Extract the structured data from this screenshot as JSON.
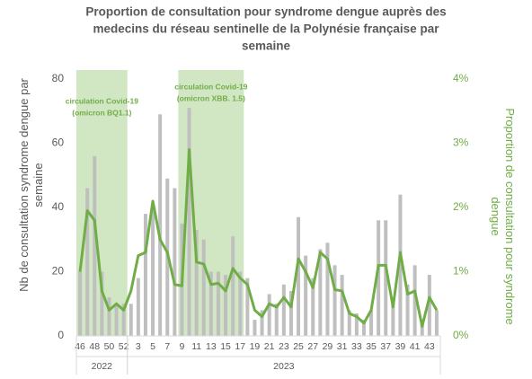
{
  "chart_data": {
    "type": "bar_line",
    "title": [
      "Proportion de consultation pour syndrome dengue auprès des",
      "medecins du réseau sentinelle de la Polynésie française par",
      "semaine"
    ],
    "ylabel": "Nb de consultation syndrome dengue par semaine",
    "y2label": "Proportion de consultation pour syndrome dengue",
    "categories": [
      "46",
      null,
      "48",
      null,
      "50",
      null,
      "52",
      null,
      "3",
      null,
      "5",
      null,
      "7",
      null,
      "9",
      null,
      "11",
      null,
      "13",
      null,
      "15",
      null,
      "17",
      null,
      "19",
      null,
      "21",
      null,
      "23",
      null,
      "25",
      null,
      "27",
      null,
      "29",
      null,
      "31",
      null,
      "33",
      null,
      "35",
      null,
      "37",
      null,
      "39",
      null,
      "41",
      null,
      "43",
      null
    ],
    "x_groups": [
      {
        "label": "2022",
        "start": "46",
        "end": "52"
      },
      {
        "label": "2023",
        "start": "3",
        "end": "43"
      }
    ],
    "series": [
      {
        "name": "Nb de consultation",
        "color": "#bfbfbf",
        "axis": "y",
        "values": [
          20,
          46,
          56,
          20,
          12,
          10,
          10,
          10,
          18,
          38,
          40,
          69,
          49,
          46,
          35,
          71,
          33,
          30,
          20,
          20,
          19,
          31,
          20,
          18,
          5,
          8,
          13,
          10,
          16,
          14,
          37,
          25,
          18,
          27,
          29,
          22,
          19,
          8,
          7,
          5,
          8,
          36,
          36,
          11,
          44,
          16,
          22,
          5,
          19,
          8
        ]
      },
      {
        "name": "Proportion",
        "color": "#70ad47",
        "axis": "y2",
        "values": [
          1.0,
          1.95,
          1.8,
          0.7,
          0.4,
          0.5,
          0.4,
          0.7,
          1.25,
          1.3,
          2.1,
          1.5,
          1.3,
          0.8,
          0.78,
          2.9,
          1.15,
          1.12,
          0.8,
          0.82,
          0.7,
          1.05,
          0.9,
          0.8,
          0.4,
          0.3,
          0.5,
          0.45,
          0.6,
          0.45,
          1.2,
          1.0,
          0.75,
          1.3,
          1.2,
          0.72,
          0.7,
          0.35,
          0.3,
          0.2,
          0.4,
          1.1,
          1.1,
          0.45,
          1.3,
          0.65,
          0.7,
          0.15,
          0.6,
          0.4
        ]
      }
    ],
    "shaded_regions": [
      {
        "label": [
          "circulation Covid-19",
          "(omicron BQ1.1)"
        ],
        "start": "46",
        "end": "52",
        "color": "#c5e0b4"
      },
      {
        "label": [
          "circulation Covid-19",
          "(omicron XBB. 1.5)"
        ],
        "start": "9",
        "end": "17",
        "color": "#c5e0b4"
      }
    ],
    "ylim": [
      0,
      80
    ],
    "yticks": [
      0,
      20,
      40,
      60,
      80
    ],
    "y2lim": [
      0,
      4
    ],
    "y2ticks": [
      {
        "value": 0,
        "label": "0%"
      },
      {
        "value": 1,
        "label": "1%"
      },
      {
        "value": 2,
        "label": "2%"
      },
      {
        "value": 3,
        "label": "3%"
      },
      {
        "value": 4,
        "label": "4%"
      }
    ],
    "grid": false
  }
}
